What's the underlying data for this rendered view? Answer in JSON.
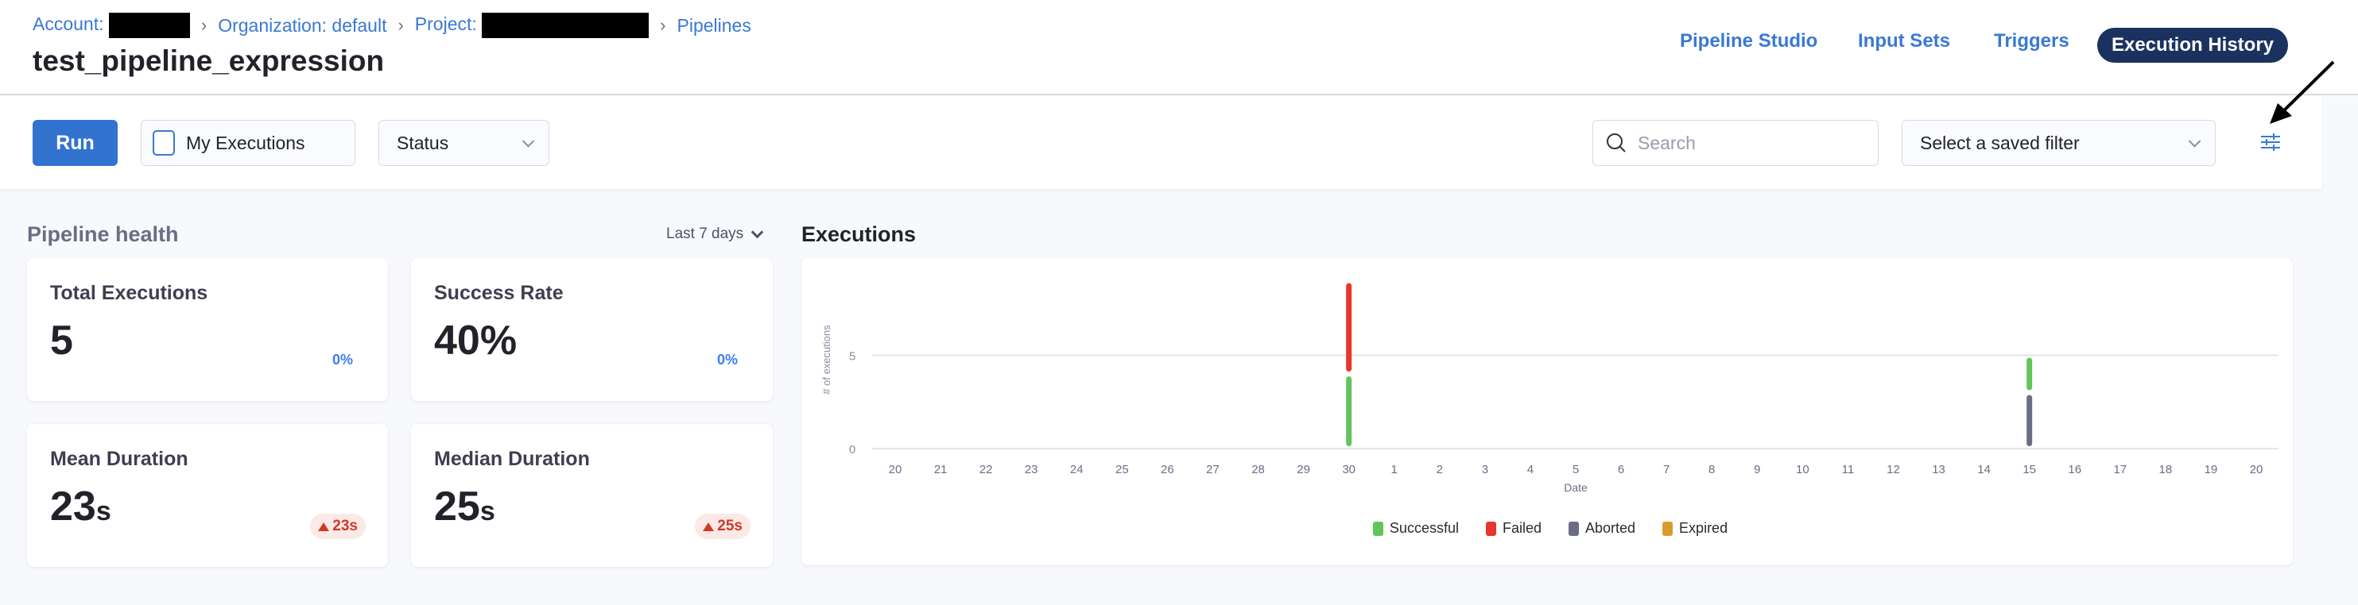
{
  "breadcrumb": {
    "account": "Account:",
    "organization": "Organization: default",
    "project": "Project:",
    "pipelines": "Pipelines"
  },
  "page_title": "test_pipeline_expression",
  "tabs": [
    {
      "label": "Pipeline Studio"
    },
    {
      "label": "Input Sets"
    },
    {
      "label": "Triggers"
    },
    {
      "label": "Execution History",
      "active": true
    }
  ],
  "toolbar": {
    "run_label": "Run",
    "my_executions_label": "My Executions",
    "my_executions_checked": false,
    "status_label": "Status",
    "search_placeholder": "Search",
    "saved_filter_placeholder": "Select a saved filter"
  },
  "health": {
    "title": "Pipeline health",
    "range": "Last 7 days",
    "cards": [
      {
        "label": "Total Executions",
        "value": "5",
        "unit": "",
        "change": "0%"
      },
      {
        "label": "Success Rate",
        "value": "40%",
        "unit": "",
        "change": "0%"
      },
      {
        "label": "Mean Duration",
        "value": "23",
        "unit": "s",
        "change": "23s",
        "trend": "up"
      },
      {
        "label": "Median Duration",
        "value": "25",
        "unit": "s",
        "change": "25s",
        "trend": "up"
      }
    ]
  },
  "executions_title": "Executions",
  "colors": {
    "accent": "#3273d0",
    "successful": "#63c45a",
    "failed": "#e8372a",
    "aborted": "#6b6d85",
    "expired": "#d89b30",
    "active_tab": "#1b3260"
  },
  "chart_data": {
    "type": "bar",
    "stacked": true,
    "xlabel": "Date",
    "ylabel": "# of executions",
    "categories": [
      "20",
      "21",
      "22",
      "23",
      "24",
      "25",
      "26",
      "27",
      "28",
      "29",
      "30",
      "1",
      "2",
      "3",
      "4",
      "5",
      "6",
      "7",
      "8",
      "9",
      "10",
      "11",
      "12",
      "13",
      "14",
      "15",
      "16",
      "17",
      "18",
      "19",
      "20"
    ],
    "yticks": [
      0,
      5
    ],
    "ylim": [
      0,
      9
    ],
    "grid": true,
    "legend": "bottom",
    "series": [
      {
        "name": "Successful",
        "color": "#63c45a",
        "values": {
          "10": 4,
          "25": 2
        }
      },
      {
        "name": "Failed",
        "color": "#e8372a",
        "values": {
          "10": 5
        }
      },
      {
        "name": "Aborted",
        "color": "#6b6d85",
        "values": {
          "25": 3
        }
      },
      {
        "name": "Expired",
        "color": "#d89b30",
        "values": {}
      }
    ]
  }
}
